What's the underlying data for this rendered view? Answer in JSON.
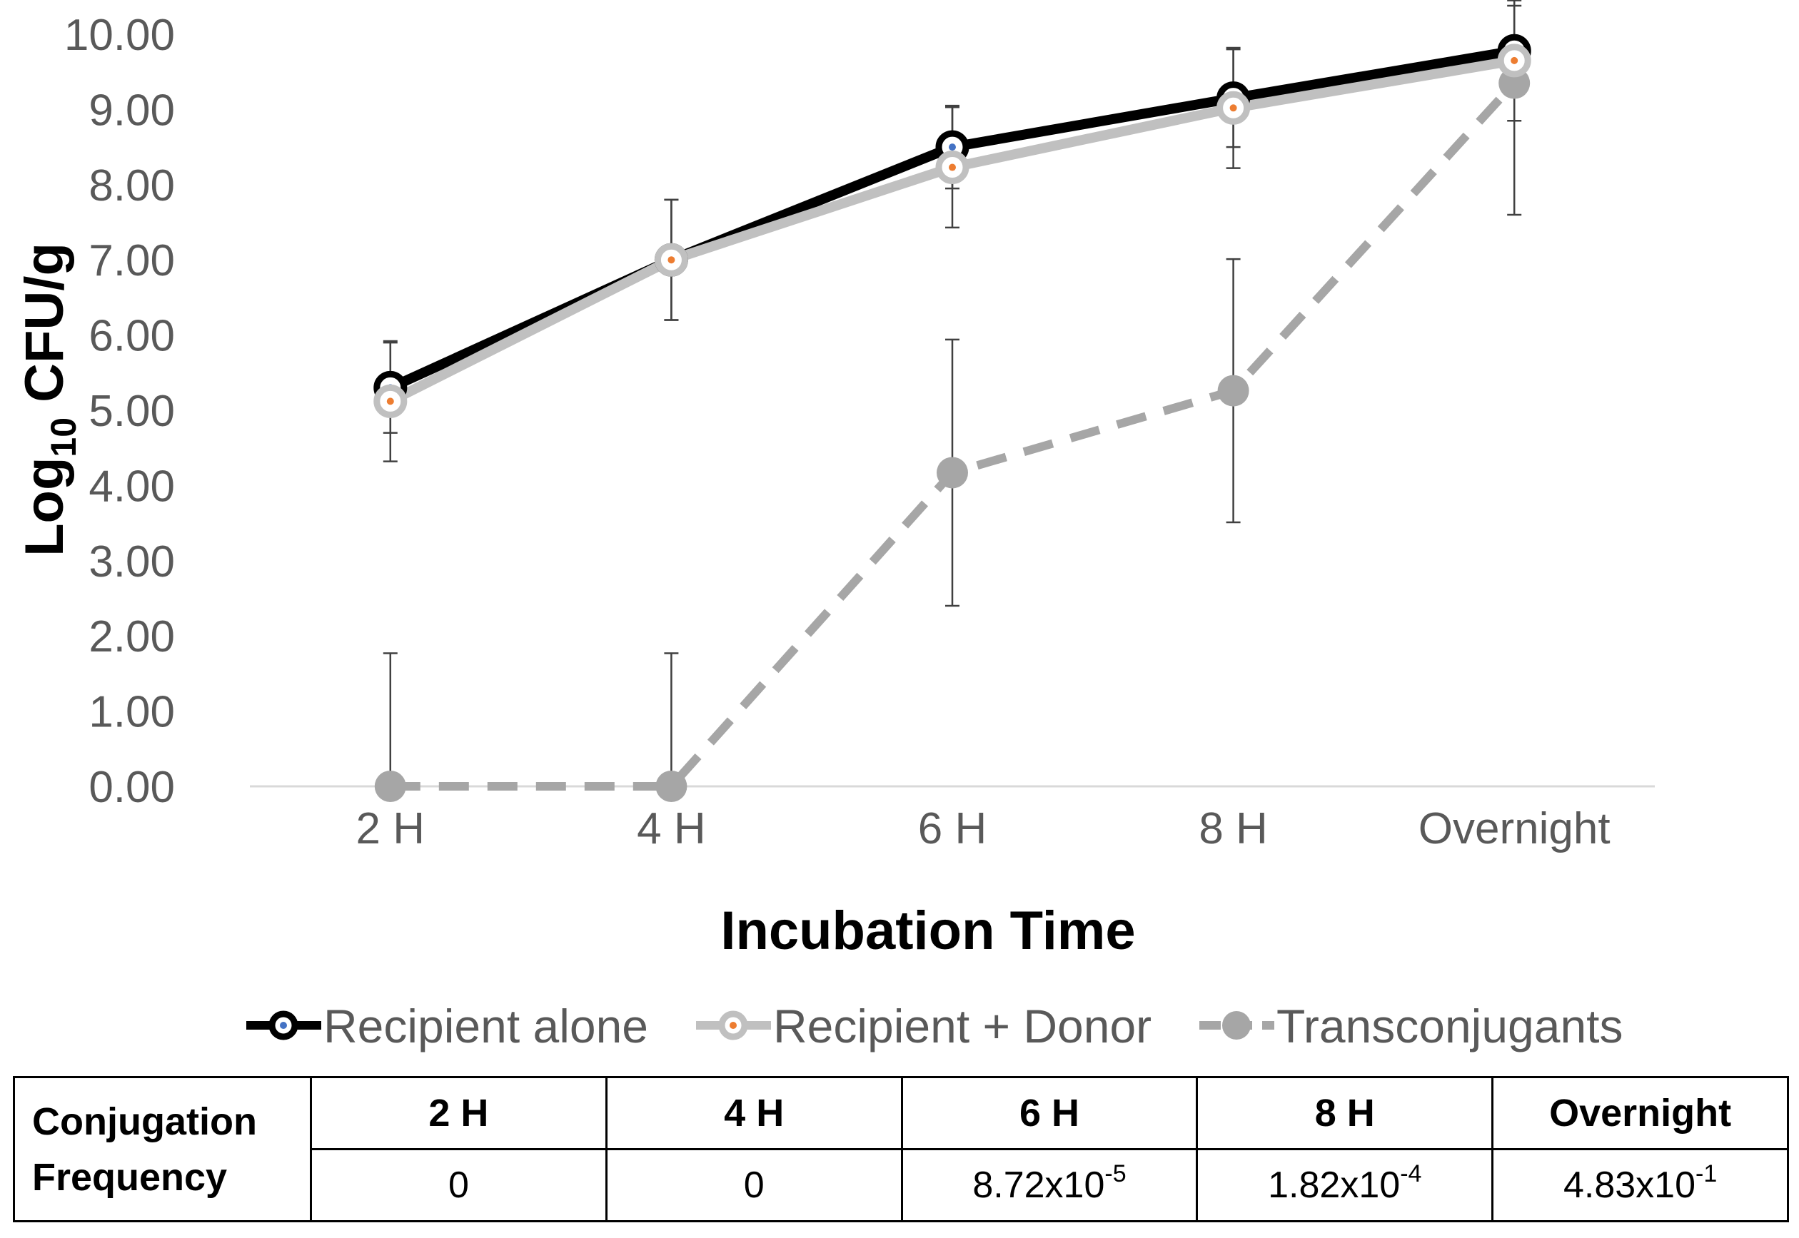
{
  "chart_data": {
    "type": "line",
    "title": "",
    "xlabel": "Incubation Time",
    "ylabel": {
      "prefix": "Log",
      "subscript": "10",
      "suffix": " CFU/g"
    },
    "categories": [
      "2 H",
      "4 H",
      "6 H",
      "8 H",
      "Overnight"
    ],
    "ylim": [
      0,
      10
    ],
    "yticks": [
      "0.00",
      "1.00",
      "2.00",
      "3.00",
      "4.00",
      "5.00",
      "6.00",
      "7.00",
      "8.00",
      "9.00",
      "10.00"
    ],
    "grid": false,
    "legend": "bottom",
    "series": [
      {
        "name": "Recipient alone",
        "values": [
          5.3,
          7.0,
          8.5,
          9.15,
          9.78
        ],
        "error": [
          0.6,
          0.8,
          0.55,
          0.65,
          0.6
        ],
        "color": "#000000",
        "marker_dot": "#4472c4",
        "style": "solid"
      },
      {
        "name": "Recipient + Donor",
        "values": [
          5.12,
          7.0,
          8.23,
          9.02,
          9.65
        ],
        "error": [
          0.8,
          0.8,
          0.8,
          0.8,
          0.8
        ],
        "color": "#c0c0c0",
        "marker_dot": "#ed7d31",
        "style": "solid"
      },
      {
        "name": "Transconjugants",
        "values": [
          0.0,
          0.0,
          4.17,
          5.26,
          9.35
        ],
        "error": [
          1.77,
          1.77,
          1.77,
          1.75,
          1.75
        ],
        "color": "#a6a6a6",
        "marker_dot": "#a6a6a6",
        "style": "dashed"
      }
    ]
  },
  "frequency_table": {
    "row_header_line1": "Conjugation",
    "row_header_line2": "Frequency",
    "columns": [
      "2 H",
      "4 H",
      "6 H",
      "8 H",
      "Overnight"
    ],
    "values": [
      {
        "base": "0",
        "exp": ""
      },
      {
        "base": "0",
        "exp": ""
      },
      {
        "base": "8.72x10",
        "exp": "-5"
      },
      {
        "base": "1.82x10",
        "exp": "-4"
      },
      {
        "base": "4.83x10",
        "exp": "-1"
      }
    ]
  }
}
